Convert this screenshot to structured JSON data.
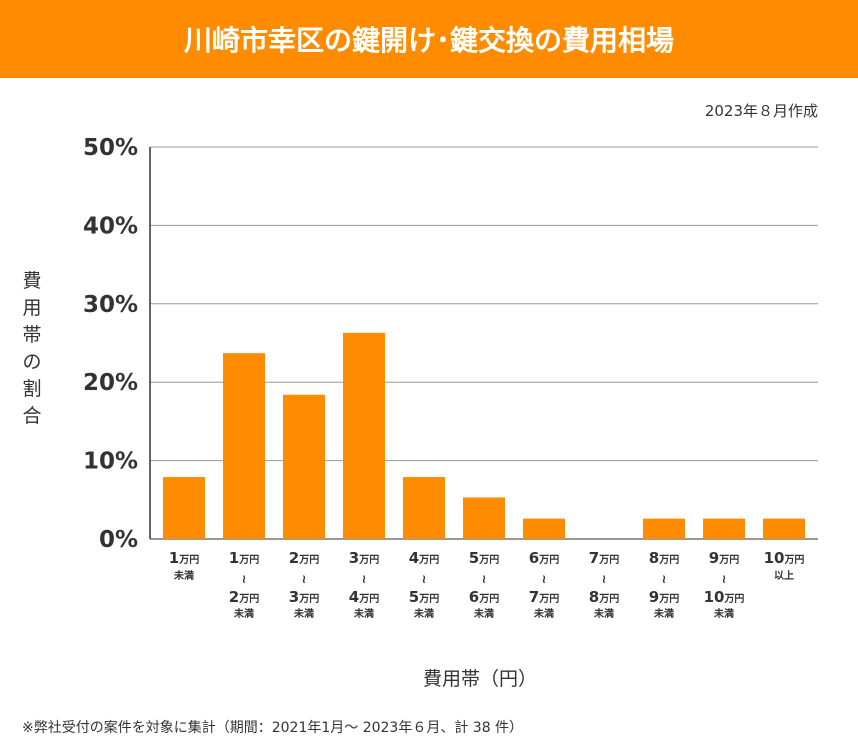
{
  "header": {
    "title": "川崎市幸区の鍵開け･鍵交換の費用相場"
  },
  "created": "2023年８月作成",
  "footnote": "※弊社受付の案件を対象に集計（期間：2021年1月～ 2023年６月、計 38 件）",
  "colors": {
    "accent": "#FF8C00",
    "grid": "#999999"
  },
  "chart_data": {
    "type": "bar",
    "title": "川崎市幸区の鍵開け･鍵交換の費用相場",
    "xlabel": "費用帯（円）",
    "ylabel": "費用帯の割合",
    "ylim": [
      0,
      50
    ],
    "yticks": [
      "0%",
      "10%",
      "20%",
      "30%",
      "40%",
      "50%"
    ],
    "grid": true,
    "categories": [
      {
        "lines": [
          "1",
          "万円"
        ],
        "sub": [
          "未満"
        ]
      },
      {
        "lines": [
          "1",
          "万円"
        ],
        "to": [
          "2",
          "万円"
        ],
        "sub": [
          "未満"
        ]
      },
      {
        "lines": [
          "2",
          "万円"
        ],
        "to": [
          "3",
          "万円"
        ],
        "sub": [
          "未満"
        ]
      },
      {
        "lines": [
          "3",
          "万円"
        ],
        "to": [
          "4",
          "万円"
        ],
        "sub": [
          "未満"
        ]
      },
      {
        "lines": [
          "4",
          "万円"
        ],
        "to": [
          "5",
          "万円"
        ],
        "sub": [
          "未満"
        ]
      },
      {
        "lines": [
          "5",
          "万円"
        ],
        "to": [
          "6",
          "万円"
        ],
        "sub": [
          "未満"
        ]
      },
      {
        "lines": [
          "6",
          "万円"
        ],
        "to": [
          "7",
          "万円"
        ],
        "sub": [
          "未満"
        ]
      },
      {
        "lines": [
          "7",
          "万円"
        ],
        "to": [
          "8",
          "万円"
        ],
        "sub": [
          "未満"
        ]
      },
      {
        "lines": [
          "8",
          "万円"
        ],
        "to": [
          "9",
          "万円"
        ],
        "sub": [
          "未満"
        ]
      },
      {
        "lines": [
          "9",
          "万円"
        ],
        "to": [
          "10",
          "万円"
        ],
        "sub": [
          "未満"
        ]
      },
      {
        "lines": [
          "10",
          "万円"
        ],
        "sub": [
          "以上"
        ]
      }
    ],
    "values": [
      7.9,
      23.7,
      18.4,
      26.3,
      7.9,
      5.3,
      2.6,
      0,
      2.6,
      2.6,
      2.6
    ]
  }
}
